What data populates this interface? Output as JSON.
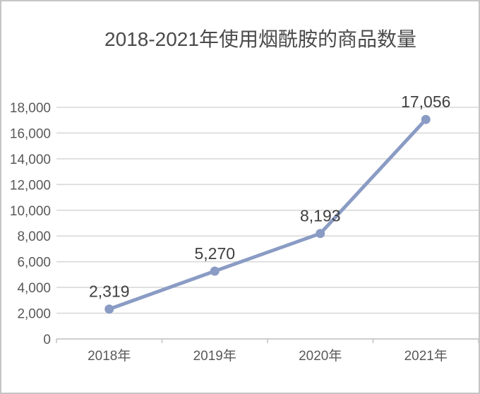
{
  "window": {
    "background": "#ffffff",
    "border_color": "#c6c6c6"
  },
  "chart_data": {
    "type": "line",
    "title": "2018-2021年使用烟酰胺的商品数量",
    "categories": [
      "2018年",
      "2019年",
      "2020年",
      "2021年"
    ],
    "values": [
      2319,
      5270,
      8193,
      17056
    ],
    "point_labels": [
      "2,319",
      "5,270",
      "8,193",
      "17,056"
    ],
    "xlabel": "",
    "ylabel": "",
    "ylim": [
      0,
      18000
    ],
    "y_tick_step": 2000,
    "y_tick_labels": [
      "0",
      "2,000",
      "4,000",
      "6,000",
      "8,000",
      "10,000",
      "12,000",
      "14,000",
      "16,000",
      "18,000"
    ],
    "grid": true,
    "legend": false,
    "colors": {
      "line": "#8a9cc4",
      "marker": "#8a9cc4",
      "gridline": "#d9d9d9",
      "axis_line": "#bfbfbf",
      "title_text": "#4a4a4a",
      "axis_text": "#595959",
      "data_label_text": "#404040"
    }
  }
}
